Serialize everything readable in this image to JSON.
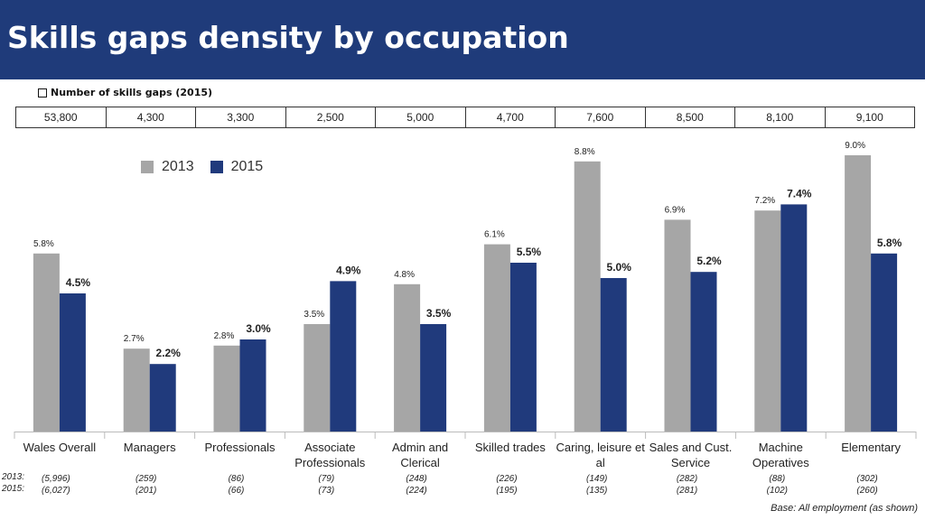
{
  "title": "Skills gaps density by occupation",
  "gaps_label": "Number of skills gaps (2015)",
  "gaps_counts": [
    "53,800",
    "4,300",
    "3,300",
    "2,500",
    "5,000",
    "4,700",
    "7,600",
    "8,500",
    "8,100",
    "9,100"
  ],
  "legend": [
    {
      "label": "2013",
      "color": "#a6a6a6"
    },
    {
      "label": "2015",
      "color": "#203a7c"
    }
  ],
  "row_labels": {
    "r2013": "2013:",
    "r2015": "2015:"
  },
  "footnote": "Base: All employment  (as shown)",
  "chart_data": {
    "type": "bar",
    "categories": [
      [
        "Wales Overall"
      ],
      [
        "Managers"
      ],
      [
        "Professionals"
      ],
      [
        "Associate",
        "Professionals"
      ],
      [
        "Admin and",
        "Clerical"
      ],
      [
        "Skilled trades"
      ],
      [
        "Caring, leisure et",
        "al"
      ],
      [
        "Sales and Cust.",
        "Service"
      ],
      [
        "Machine",
        "Operatives"
      ],
      [
        "Elementary"
      ]
    ],
    "series": [
      {
        "name": "2013",
        "values": [
          5.8,
          2.7,
          2.8,
          3.5,
          4.8,
          6.1,
          8.8,
          6.9,
          7.2,
          9.0
        ],
        "labels": [
          "5.8%",
          "2.7%",
          "2.8%",
          "3.5%",
          "4.8%",
          "6.1%",
          "8.8%",
          "6.9%",
          "7.2%",
          "9.0%"
        ],
        "bases": [
          "(5,996)",
          "(259)",
          "(86)",
          "(79)",
          "(248)",
          "(226)",
          "(149)",
          "(282)",
          "(88)",
          "(302)"
        ]
      },
      {
        "name": "2015",
        "values": [
          4.5,
          2.2,
          3.0,
          4.9,
          3.5,
          5.5,
          5.0,
          5.2,
          7.4,
          5.8
        ],
        "labels": [
          "4.5%",
          "2.2%",
          "3.0%",
          "4.9%",
          "3.5%",
          "5.5%",
          "5.0%",
          "5.2%",
          "7.4%",
          "5.8%"
        ],
        "bases": [
          "(6,027)",
          "(201)",
          "(66)",
          "(73)",
          "(224)",
          "(195)",
          "(135)",
          "(281)",
          "(102)",
          "(260)"
        ]
      }
    ],
    "ylim": [
      0,
      9.0
    ],
    "grid": false
  }
}
